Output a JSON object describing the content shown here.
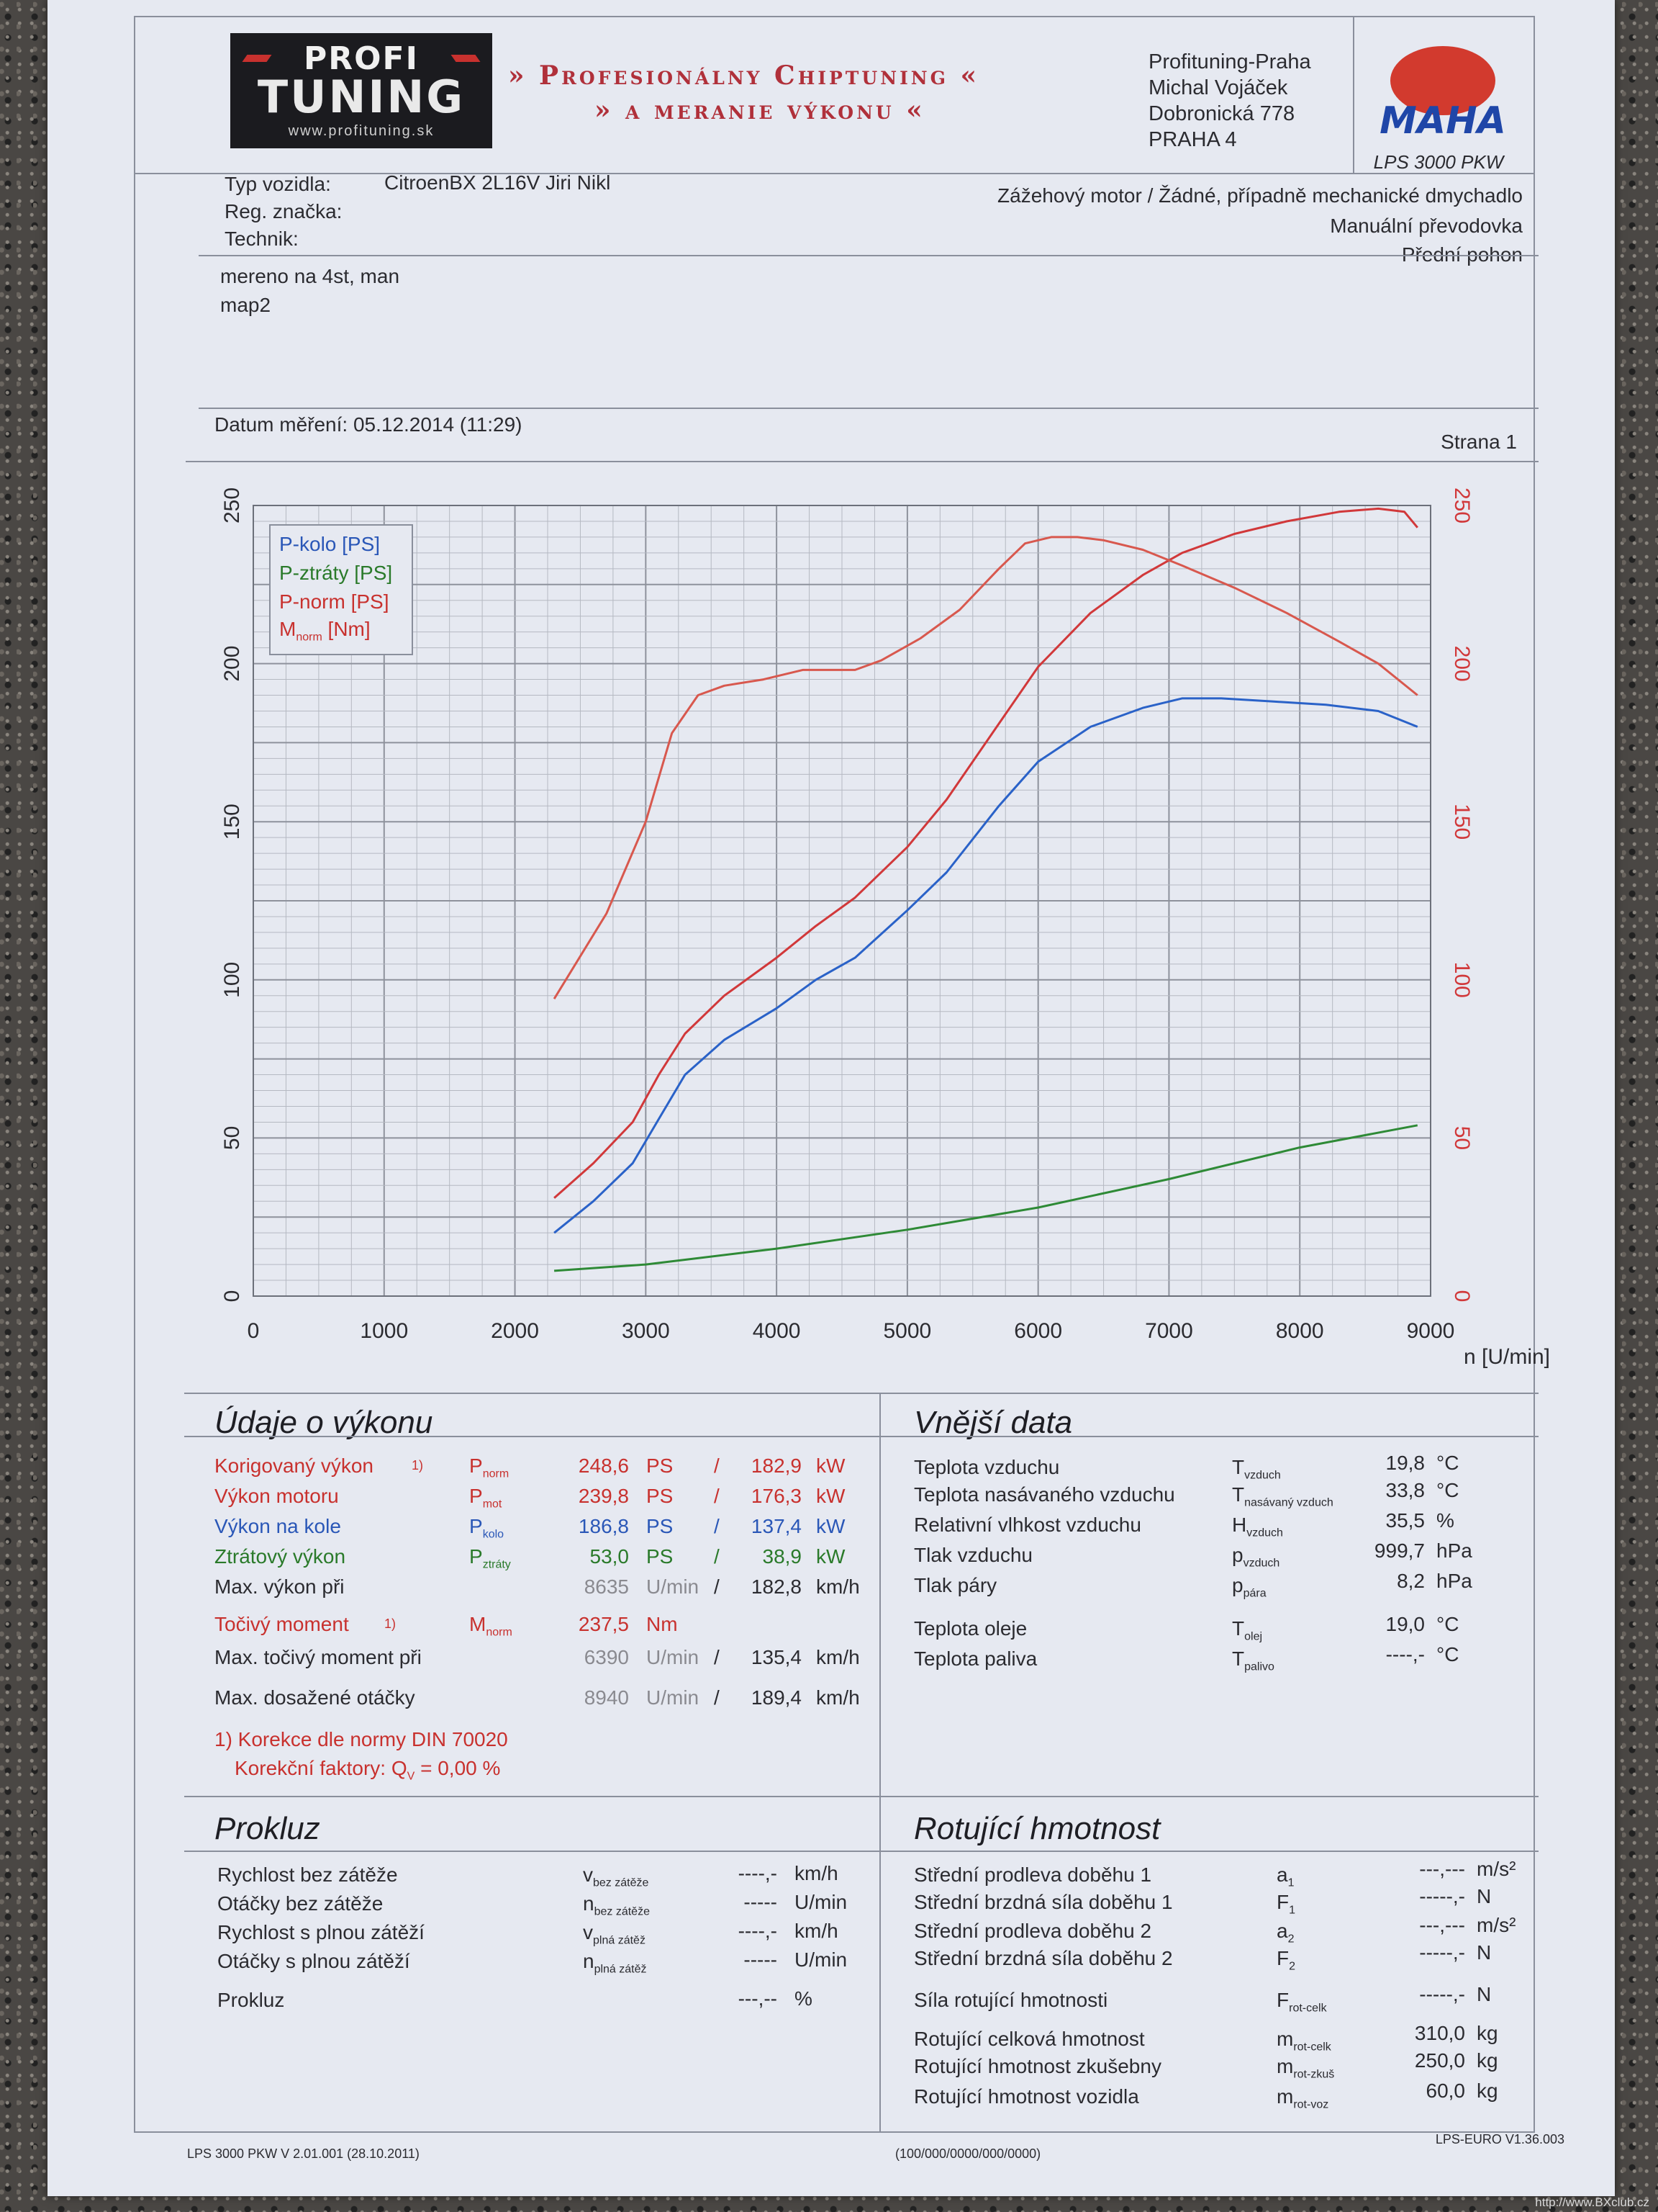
{
  "header": {
    "logo_top": "PROFI",
    "logo_main": "TUNING",
    "logo_url": "www.profituning.sk",
    "banner_line1": "» Profesionálny Chiptuning «",
    "banner_line2": "» a meranie výkonu «",
    "company_lines": [
      "Profituning-Praha",
      "Michal Vojáček",
      "Dobronická 778",
      "PRAHA 4"
    ],
    "maha_logo": "MAHA",
    "maha_model": "LPS 3000 PKW"
  },
  "vehicle": {
    "typ_label": "Typ vozidla:",
    "typ_value": "CitroenBX 2L16V Jiri Nikl",
    "reg_label": "Reg. značka:",
    "tech_label": "Technik:",
    "engine": "Zážehový motor / Žádné, případně mechanické dmychadlo",
    "gearbox": "Manuální převodovka",
    "drive": "Přední pohon"
  },
  "notes": [
    "mereno na 4st, man",
    "map2"
  ],
  "measurement": {
    "date_label": "Datum měření: 05.12.2014 (11:29)",
    "page_label": "Strana 1"
  },
  "chart_data": {
    "type": "line",
    "xlabel": "n [U/min]",
    "xlim": [
      0,
      9000
    ],
    "x_ticks": [
      "0",
      "1000",
      "2000",
      "3000",
      "4000",
      "5000",
      "6000",
      "7000",
      "8000",
      "9000"
    ],
    "ylim_left": [
      0,
      250
    ],
    "y_ticks_left": [
      "0",
      "50",
      "100",
      "150",
      "200",
      "250"
    ],
    "ylim_right": [
      0,
      250
    ],
    "y_ticks_right": [
      "0",
      "50",
      "100",
      "150",
      "200",
      "250"
    ],
    "grid": true,
    "legend_position": "top-left",
    "series": [
      {
        "name": "P-kolo [PS]",
        "color": "#2a62c8",
        "axis": "left",
        "x": [
          2300,
          2600,
          2900,
          3100,
          3300,
          3600,
          4000,
          4300,
          4600,
          5000,
          5300,
          5700,
          6000,
          6400,
          6800,
          7100,
          7400,
          7800,
          8200,
          8600,
          8900
        ],
        "y": [
          20,
          30,
          42,
          56,
          70,
          81,
          91,
          100,
          107,
          122,
          134,
          155,
          169,
          180,
          186,
          189,
          189,
          188,
          187,
          185,
          180
        ]
      },
      {
        "name": "P-ztráty [PS]",
        "color": "#2e8a36",
        "axis": "left",
        "x": [
          2300,
          3000,
          4000,
          5000,
          6000,
          7000,
          8000,
          8900
        ],
        "y": [
          8,
          10,
          15,
          21,
          28,
          37,
          47,
          54
        ]
      },
      {
        "name": "P-norm [PS]",
        "color": "#d1383a",
        "axis": "left",
        "x": [
          2300,
          2600,
          2900,
          3100,
          3300,
          3600,
          4000,
          4300,
          4600,
          5000,
          5300,
          5700,
          6000,
          6400,
          6800,
          7100,
          7500,
          7900,
          8300,
          8600,
          8800,
          8900
        ],
        "y": [
          31,
          42,
          55,
          70,
          83,
          95,
          107,
          117,
          126,
          142,
          157,
          181,
          199,
          216,
          228,
          235,
          241,
          245,
          248,
          249,
          248,
          243
        ]
      },
      {
        "name": "M_norm [Nm]",
        "color": "#d8584e",
        "axis": "right",
        "x": [
          2300,
          2700,
          3000,
          3200,
          3400,
          3600,
          3900,
          4200,
          4400,
          4600,
          4800,
          5100,
          5400,
          5700,
          5900,
          6100,
          6300,
          6500,
          6800,
          7100,
          7500,
          7900,
          8300,
          8600,
          8900
        ],
        "y": [
          94,
          121,
          150,
          178,
          190,
          193,
          195,
          198,
          198,
          198,
          201,
          208,
          217,
          230,
          238,
          240,
          240,
          239,
          236,
          231,
          224,
          216,
          207,
          200,
          190
        ]
      }
    ]
  },
  "performance": {
    "title": "Údaje o výkonu",
    "rows": [
      {
        "label": "Korigovaný výkon",
        "note": "1)",
        "sym": "P",
        "sub": "norm",
        "v1": "248,6",
        "u1": "PS",
        "sep": "/",
        "v2": "182,9",
        "u2": "kW",
        "color": "red"
      },
      {
        "label": "Výkon motoru",
        "note": "",
        "sym": "P",
        "sub": "mot",
        "v1": "239,8",
        "u1": "PS",
        "sep": "/",
        "v2": "176,3",
        "u2": "kW",
        "color": "red"
      },
      {
        "label": "Výkon na kole",
        "note": "",
        "sym": "P",
        "sub": "kolo",
        "v1": "186,8",
        "u1": "PS",
        "sep": "/",
        "v2": "137,4",
        "u2": "kW",
        "color": "blue"
      },
      {
        "label": "Ztrátový výkon",
        "note": "",
        "sym": "P",
        "sub": "ztráty",
        "v1": "53,0",
        "u1": "PS",
        "sep": "/",
        "v2": "38,9",
        "u2": "kW",
        "color": "green"
      },
      {
        "label": "Max. výkon při",
        "note": "",
        "sym": "",
        "sub": "",
        "v1": "8635",
        "u1": "U/min",
        "sep": "/",
        "v2": "182,8",
        "u2": "km/h",
        "color": "dark"
      }
    ],
    "torque": {
      "label": "Točivý moment",
      "note": "1)",
      "sym": "M",
      "sub": "norm",
      "v1": "237,5",
      "u1": "Nm"
    },
    "rows2": [
      {
        "label": "Max. točivý moment při",
        "v1": "6390",
        "u1": "U/min",
        "sep": "/",
        "v2": "135,4",
        "u2": "km/h"
      },
      {
        "label": "Max. dosažené otáčky",
        "v1": "8940",
        "u1": "U/min",
        "sep": "/",
        "v2": "189,4",
        "u2": "km/h"
      }
    ],
    "footnote1": "1) Korekce dle normy DIN 70020",
    "footnote2_prefix": "Korekční faktory: Q",
    "footnote2_sub": "V",
    "footnote2_suffix": " =   0,00 %"
  },
  "external": {
    "title": "Vnější data",
    "rows": [
      {
        "label": "Teplota vzduchu",
        "sym": "T",
        "sub": "vzduch",
        "value": "19,8",
        "unit": "°C"
      },
      {
        "label": "Teplota nasávaného vzduchu",
        "sym": "T",
        "sub": "nasávaný vzduch",
        "value": "33,8",
        "unit": "°C"
      },
      {
        "label": "Relativní vlhkost vzduchu",
        "sym": "H",
        "sub": "vzduch",
        "value": "35,5",
        "unit": "%"
      },
      {
        "label": "Tlak vzduchu",
        "sym": "p",
        "sub": "vzduch",
        "value": "999,7",
        "unit": "hPa"
      },
      {
        "label": "Tlak páry",
        "sym": "p",
        "sub": "pára",
        "value": "8,2",
        "unit": "hPa"
      },
      {
        "label": "Teplota oleje",
        "sym": "T",
        "sub": "olej",
        "value": "19,0",
        "unit": "°C"
      },
      {
        "label": "Teplota paliva",
        "sym": "T",
        "sub": "palivo",
        "value": "----,-",
        "unit": "°C"
      }
    ]
  },
  "slip": {
    "title": "Prokluz",
    "rows": [
      {
        "label": "Rychlost bez zátěže",
        "sym": "v",
        "sub": "bez zátěže",
        "value": "----,-",
        "unit": "km/h"
      },
      {
        "label": "Otáčky bez zátěže",
        "sym": "n",
        "sub": "bez zátěže",
        "value": "-----",
        "unit": "U/min"
      },
      {
        "label": "Rychlost s plnou zátěží",
        "sym": "v",
        "sub": "plná zátěž",
        "value": "----,-",
        "unit": "km/h"
      },
      {
        "label": "Otáčky s plnou zátěží",
        "sym": "n",
        "sub": "plná zátěž",
        "value": "-----",
        "unit": "U/min"
      },
      {
        "label": "Prokluz",
        "sym": "",
        "sub": "",
        "value": "---,--",
        "unit": "%"
      }
    ]
  },
  "rotating": {
    "title": "Rotující hmotnost",
    "rows": [
      {
        "label": "Střední prodleva doběhu 1",
        "sym": "a",
        "sub": "1",
        "value": "---,---",
        "unit": "m/s²"
      },
      {
        "label": "Střední brzdná síla doběhu 1",
        "sym": "F",
        "sub": "1",
        "value": "-----,-",
        "unit": "N"
      },
      {
        "label": "Střední prodleva doběhu 2",
        "sym": "a",
        "sub": "2",
        "value": "---,---",
        "unit": "m/s²"
      },
      {
        "label": "Střední brzdná síla doběhu 2",
        "sym": "F",
        "sub": "2",
        "value": "-----,-",
        "unit": "N"
      },
      {
        "label": "Síla rotující hmotnosti",
        "sym": "F",
        "sub": "rot-celk",
        "value": "-----,-",
        "unit": "N"
      },
      {
        "label": "Rotující celková hmotnost",
        "sym": "m",
        "sub": "rot-celk",
        "value": "310,0",
        "unit": "kg"
      },
      {
        "label": "Rotující hmotnost zkušebny",
        "sym": "m",
        "sub": "rot-zkuš",
        "value": "250,0",
        "unit": "kg"
      },
      {
        "label": "Rotující hmotnost vozidla",
        "sym": "m",
        "sub": "rot-voz",
        "value": "60,0",
        "unit": "kg"
      }
    ]
  },
  "footer": {
    "left": "LPS 3000 PKW V 2.01.001 (28.10.2011)",
    "center": "(100/000/0000/000/0000)",
    "right": "LPS-EURO V1.36.003",
    "watermark": "http://www.BXclub.cz"
  }
}
